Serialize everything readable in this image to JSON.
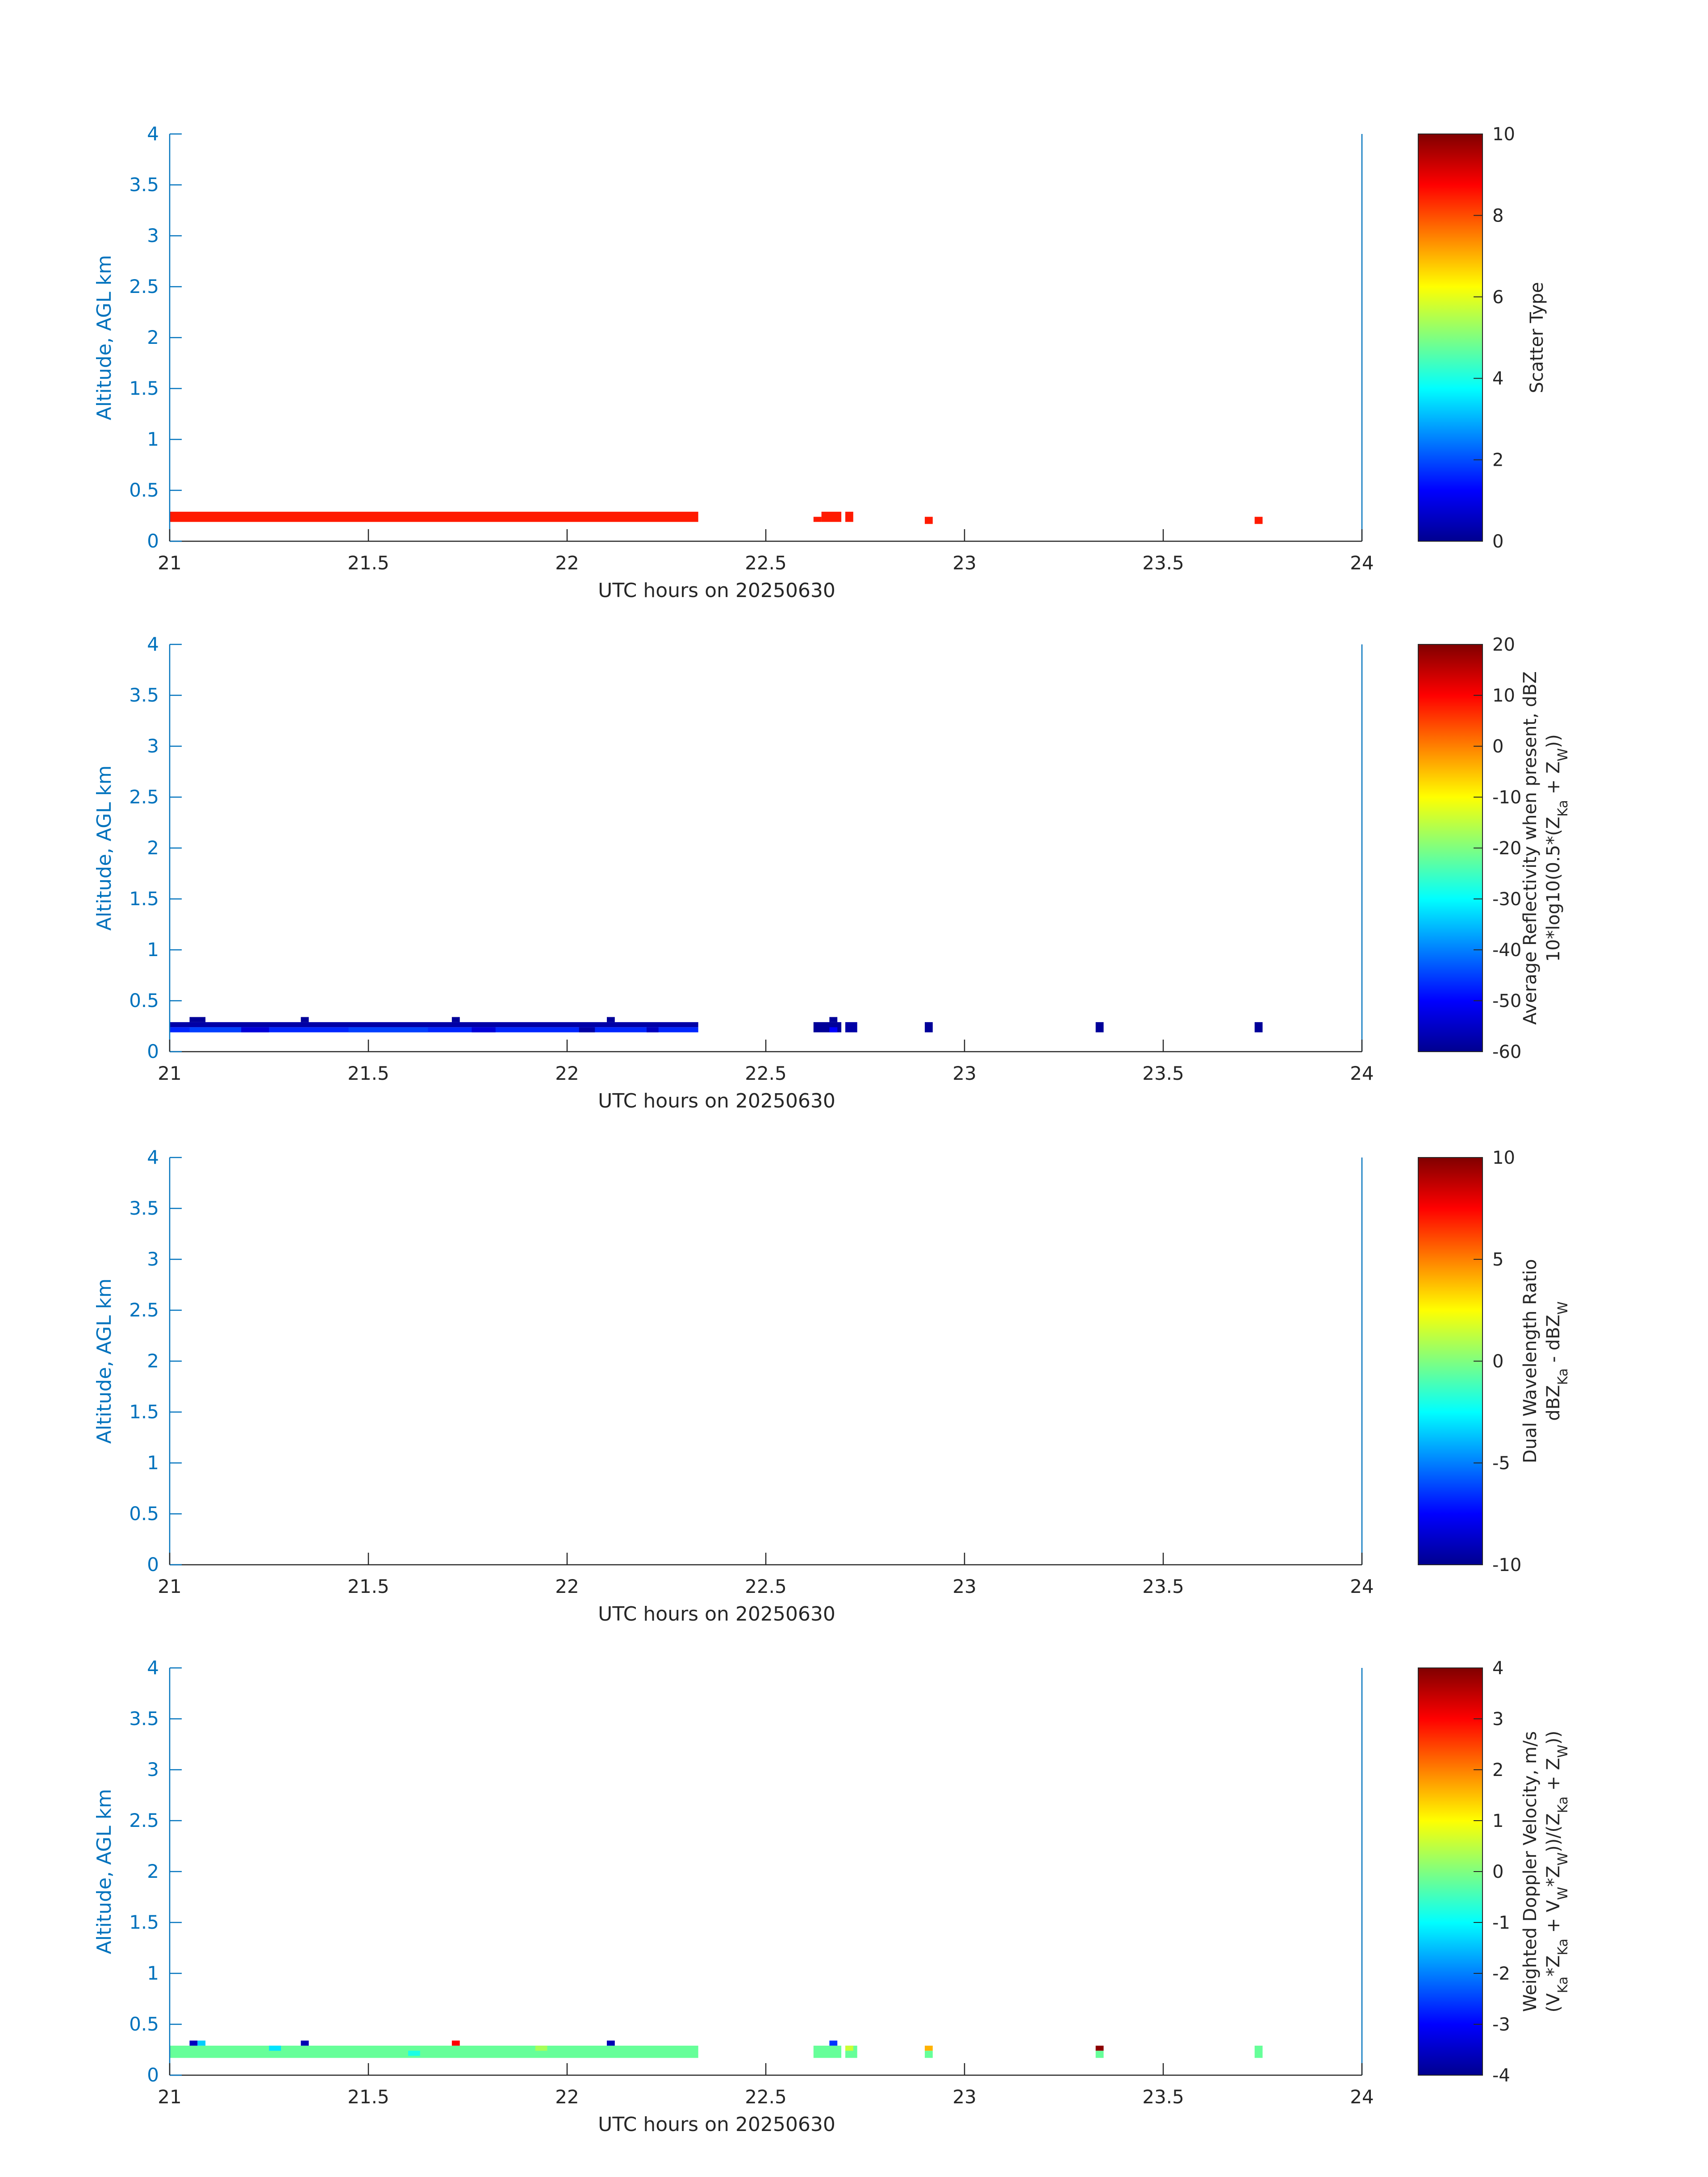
{
  "figure": {
    "panels_note": "",
    "x_tick_labels": [
      "21",
      "21.5",
      "22",
      "22.5",
      "23",
      "23.5",
      "24"
    ],
    "y_tick_labels": [
      "0",
      "0.5",
      "1",
      "1.5",
      "2",
      "2.5",
      "3",
      "3.5",
      "4"
    ],
    "axis_color": "#0072BD",
    "label_color": "#262626"
  },
  "chart_data": [
    {
      "type": "heatmap",
      "xlabel": "UTC hours on 20250630",
      "ylabel": "Altitude, AGL km",
      "xlim": [
        21,
        24
      ],
      "ylim": [
        0,
        4
      ],
      "colormap": "jet",
      "colorbar": {
        "label_lines": [
          "Scatter Type"
        ],
        "range": [
          0,
          10
        ],
        "ticks": [
          0,
          2,
          4,
          6,
          8,
          10
        ],
        "tick_labels": [
          "0",
          "2",
          "4",
          "6",
          "8",
          "10"
        ]
      },
      "cells": [
        {
          "x0": 21.0,
          "x1": 22.33,
          "y0": 0.19,
          "y1": 0.29,
          "value": 8.5
        },
        {
          "x0": 22.62,
          "x1": 22.64,
          "y0": 0.19,
          "y1": 0.24,
          "value": 8.5
        },
        {
          "x0": 22.64,
          "x1": 22.69,
          "y0": 0.19,
          "y1": 0.29,
          "value": 8.5
        },
        {
          "x0": 22.7,
          "x1": 22.72,
          "y0": 0.19,
          "y1": 0.29,
          "value": 8.5
        },
        {
          "x0": 22.9,
          "x1": 22.92,
          "y0": 0.17,
          "y1": 0.24,
          "value": 8.5
        },
        {
          "x0": 23.73,
          "x1": 23.75,
          "y0": 0.17,
          "y1": 0.24,
          "value": 8.5
        }
      ]
    },
    {
      "type": "heatmap",
      "xlabel": "UTC hours on 20250630",
      "ylabel": "Altitude, AGL km",
      "xlim": [
        21,
        24
      ],
      "ylim": [
        0,
        4
      ],
      "colormap": "jet",
      "colorbar": {
        "label_lines": [
          "Average Reflectivity when present, dBZ",
          "10*log10(0.5*(Z_Ka + Z_W))"
        ],
        "range": [
          -60,
          20
        ],
        "ticks": [
          -60,
          -50,
          -40,
          -30,
          -20,
          -10,
          0,
          10,
          20
        ],
        "tick_labels": [
          "-60",
          "-50",
          "-40",
          "-30",
          "-20",
          "-10",
          "0",
          "10",
          "20"
        ]
      },
      "cells": [
        {
          "x0": 21.0,
          "x1": 22.33,
          "y0": 0.24,
          "y1": 0.29,
          "value": -57
        },
        {
          "x0": 21.0,
          "x1": 22.33,
          "y0": 0.19,
          "y1": 0.24,
          "value": -47
        },
        {
          "x0": 21.05,
          "x1": 21.18,
          "y0": 0.19,
          "y1": 0.24,
          "value": -45
        },
        {
          "x0": 21.18,
          "x1": 21.25,
          "y0": 0.19,
          "y1": 0.24,
          "value": -53
        },
        {
          "x0": 21.45,
          "x1": 21.65,
          "y0": 0.19,
          "y1": 0.24,
          "value": -45
        },
        {
          "x0": 21.76,
          "x1": 21.82,
          "y0": 0.19,
          "y1": 0.24,
          "value": -53
        },
        {
          "x0": 22.03,
          "x1": 22.07,
          "y0": 0.19,
          "y1": 0.24,
          "value": -57
        },
        {
          "x0": 22.2,
          "x1": 22.23,
          "y0": 0.19,
          "y1": 0.24,
          "value": -55
        },
        {
          "x0": 21.05,
          "x1": 21.09,
          "y0": 0.29,
          "y1": 0.34,
          "value": -58
        },
        {
          "x0": 21.33,
          "x1": 21.35,
          "y0": 0.29,
          "y1": 0.34,
          "value": -58
        },
        {
          "x0": 21.71,
          "x1": 21.73,
          "y0": 0.29,
          "y1": 0.34,
          "value": -58
        },
        {
          "x0": 22.1,
          "x1": 22.12,
          "y0": 0.29,
          "y1": 0.34,
          "value": -58
        },
        {
          "x0": 22.62,
          "x1": 22.69,
          "y0": 0.19,
          "y1": 0.29,
          "value": -58
        },
        {
          "x0": 22.66,
          "x1": 22.68,
          "y0": 0.29,
          "y1": 0.34,
          "value": -58
        },
        {
          "x0": 22.66,
          "x1": 22.68,
          "y0": 0.19,
          "y1": 0.24,
          "value": -50
        },
        {
          "x0": 22.7,
          "x1": 22.73,
          "y0": 0.19,
          "y1": 0.29,
          "value": -57
        },
        {
          "x0": 22.9,
          "x1": 22.92,
          "y0": 0.19,
          "y1": 0.29,
          "value": -58
        },
        {
          "x0": 23.33,
          "x1": 23.35,
          "y0": 0.19,
          "y1": 0.29,
          "value": -58
        },
        {
          "x0": 23.73,
          "x1": 23.75,
          "y0": 0.19,
          "y1": 0.29,
          "value": -58
        }
      ]
    },
    {
      "type": "heatmap",
      "xlabel": "UTC hours on 20250630",
      "ylabel": "Altitude, AGL km",
      "xlim": [
        21,
        24
      ],
      "ylim": [
        0,
        4
      ],
      "colormap": "jet",
      "colorbar": {
        "label_lines": [
          "Dual Wavelength Ratio",
          "dBZ_Ka - dBZ_W"
        ],
        "range": [
          -10,
          10
        ],
        "ticks": [
          -10,
          -5,
          0,
          5,
          10
        ],
        "tick_labels": [
          "-10",
          "-5",
          "0",
          "5",
          "10"
        ]
      },
      "cells": []
    },
    {
      "type": "heatmap",
      "xlabel": "UTC hours on 20250630",
      "ylabel": "Altitude, AGL km",
      "xlim": [
        21,
        24
      ],
      "ylim": [
        0,
        4
      ],
      "colormap": "jet",
      "colorbar": {
        "label_lines": [
          "Weighted Doppler Velocity, m/s",
          "(V_Ka*Z_Ka + V_W*Z_W))/(Z_Ka + Z_W))"
        ],
        "range": [
          -4,
          4
        ],
        "ticks": [
          -4,
          -3,
          -2,
          -1,
          0,
          1,
          2,
          3,
          4
        ],
        "tick_labels": [
          "-4",
          "-3",
          "-2",
          "-1",
          "0",
          "1",
          "2",
          "3",
          "4"
        ]
      },
      "cells": [
        {
          "x0": 21.0,
          "x1": 22.33,
          "y0": 0.17,
          "y1": 0.29,
          "value": -0.2
        },
        {
          "x0": 21.05,
          "x1": 21.07,
          "y0": 0.29,
          "y1": 0.34,
          "value": -3.5
        },
        {
          "x0": 21.07,
          "x1": 21.09,
          "y0": 0.29,
          "y1": 0.34,
          "value": -1.4
        },
        {
          "x0": 21.33,
          "x1": 21.35,
          "y0": 0.29,
          "y1": 0.34,
          "value": -3.6
        },
        {
          "x0": 21.71,
          "x1": 21.73,
          "y0": 0.29,
          "y1": 0.34,
          "value": 3.0
        },
        {
          "x0": 22.1,
          "x1": 22.12,
          "y0": 0.29,
          "y1": 0.34,
          "value": -3.6
        },
        {
          "x0": 21.25,
          "x1": 21.28,
          "y0": 0.24,
          "y1": 0.29,
          "value": -1.2
        },
        {
          "x0": 21.6,
          "x1": 21.63,
          "y0": 0.19,
          "y1": 0.24,
          "value": -0.8
        },
        {
          "x0": 21.92,
          "x1": 21.95,
          "y0": 0.24,
          "y1": 0.29,
          "value": 0.3
        },
        {
          "x0": 22.62,
          "x1": 22.69,
          "y0": 0.17,
          "y1": 0.29,
          "value": -0.2
        },
        {
          "x0": 22.66,
          "x1": 22.68,
          "y0": 0.29,
          "y1": 0.34,
          "value": -2.6
        },
        {
          "x0": 22.7,
          "x1": 22.73,
          "y0": 0.17,
          "y1": 0.29,
          "value": -0.2
        },
        {
          "x0": 22.7,
          "x1": 22.72,
          "y0": 0.24,
          "y1": 0.29,
          "value": 0.6
        },
        {
          "x0": 22.9,
          "x1": 22.92,
          "y0": 0.24,
          "y1": 0.29,
          "value": 1.6
        },
        {
          "x0": 22.9,
          "x1": 22.92,
          "y0": 0.17,
          "y1": 0.24,
          "value": -0.2
        },
        {
          "x0": 23.33,
          "x1": 23.35,
          "y0": 0.24,
          "y1": 0.29,
          "value": 3.9
        },
        {
          "x0": 23.33,
          "x1": 23.35,
          "y0": 0.17,
          "y1": 0.24,
          "value": -0.2
        },
        {
          "x0": 23.73,
          "x1": 23.75,
          "y0": 0.17,
          "y1": 0.29,
          "value": -0.2
        }
      ]
    }
  ]
}
